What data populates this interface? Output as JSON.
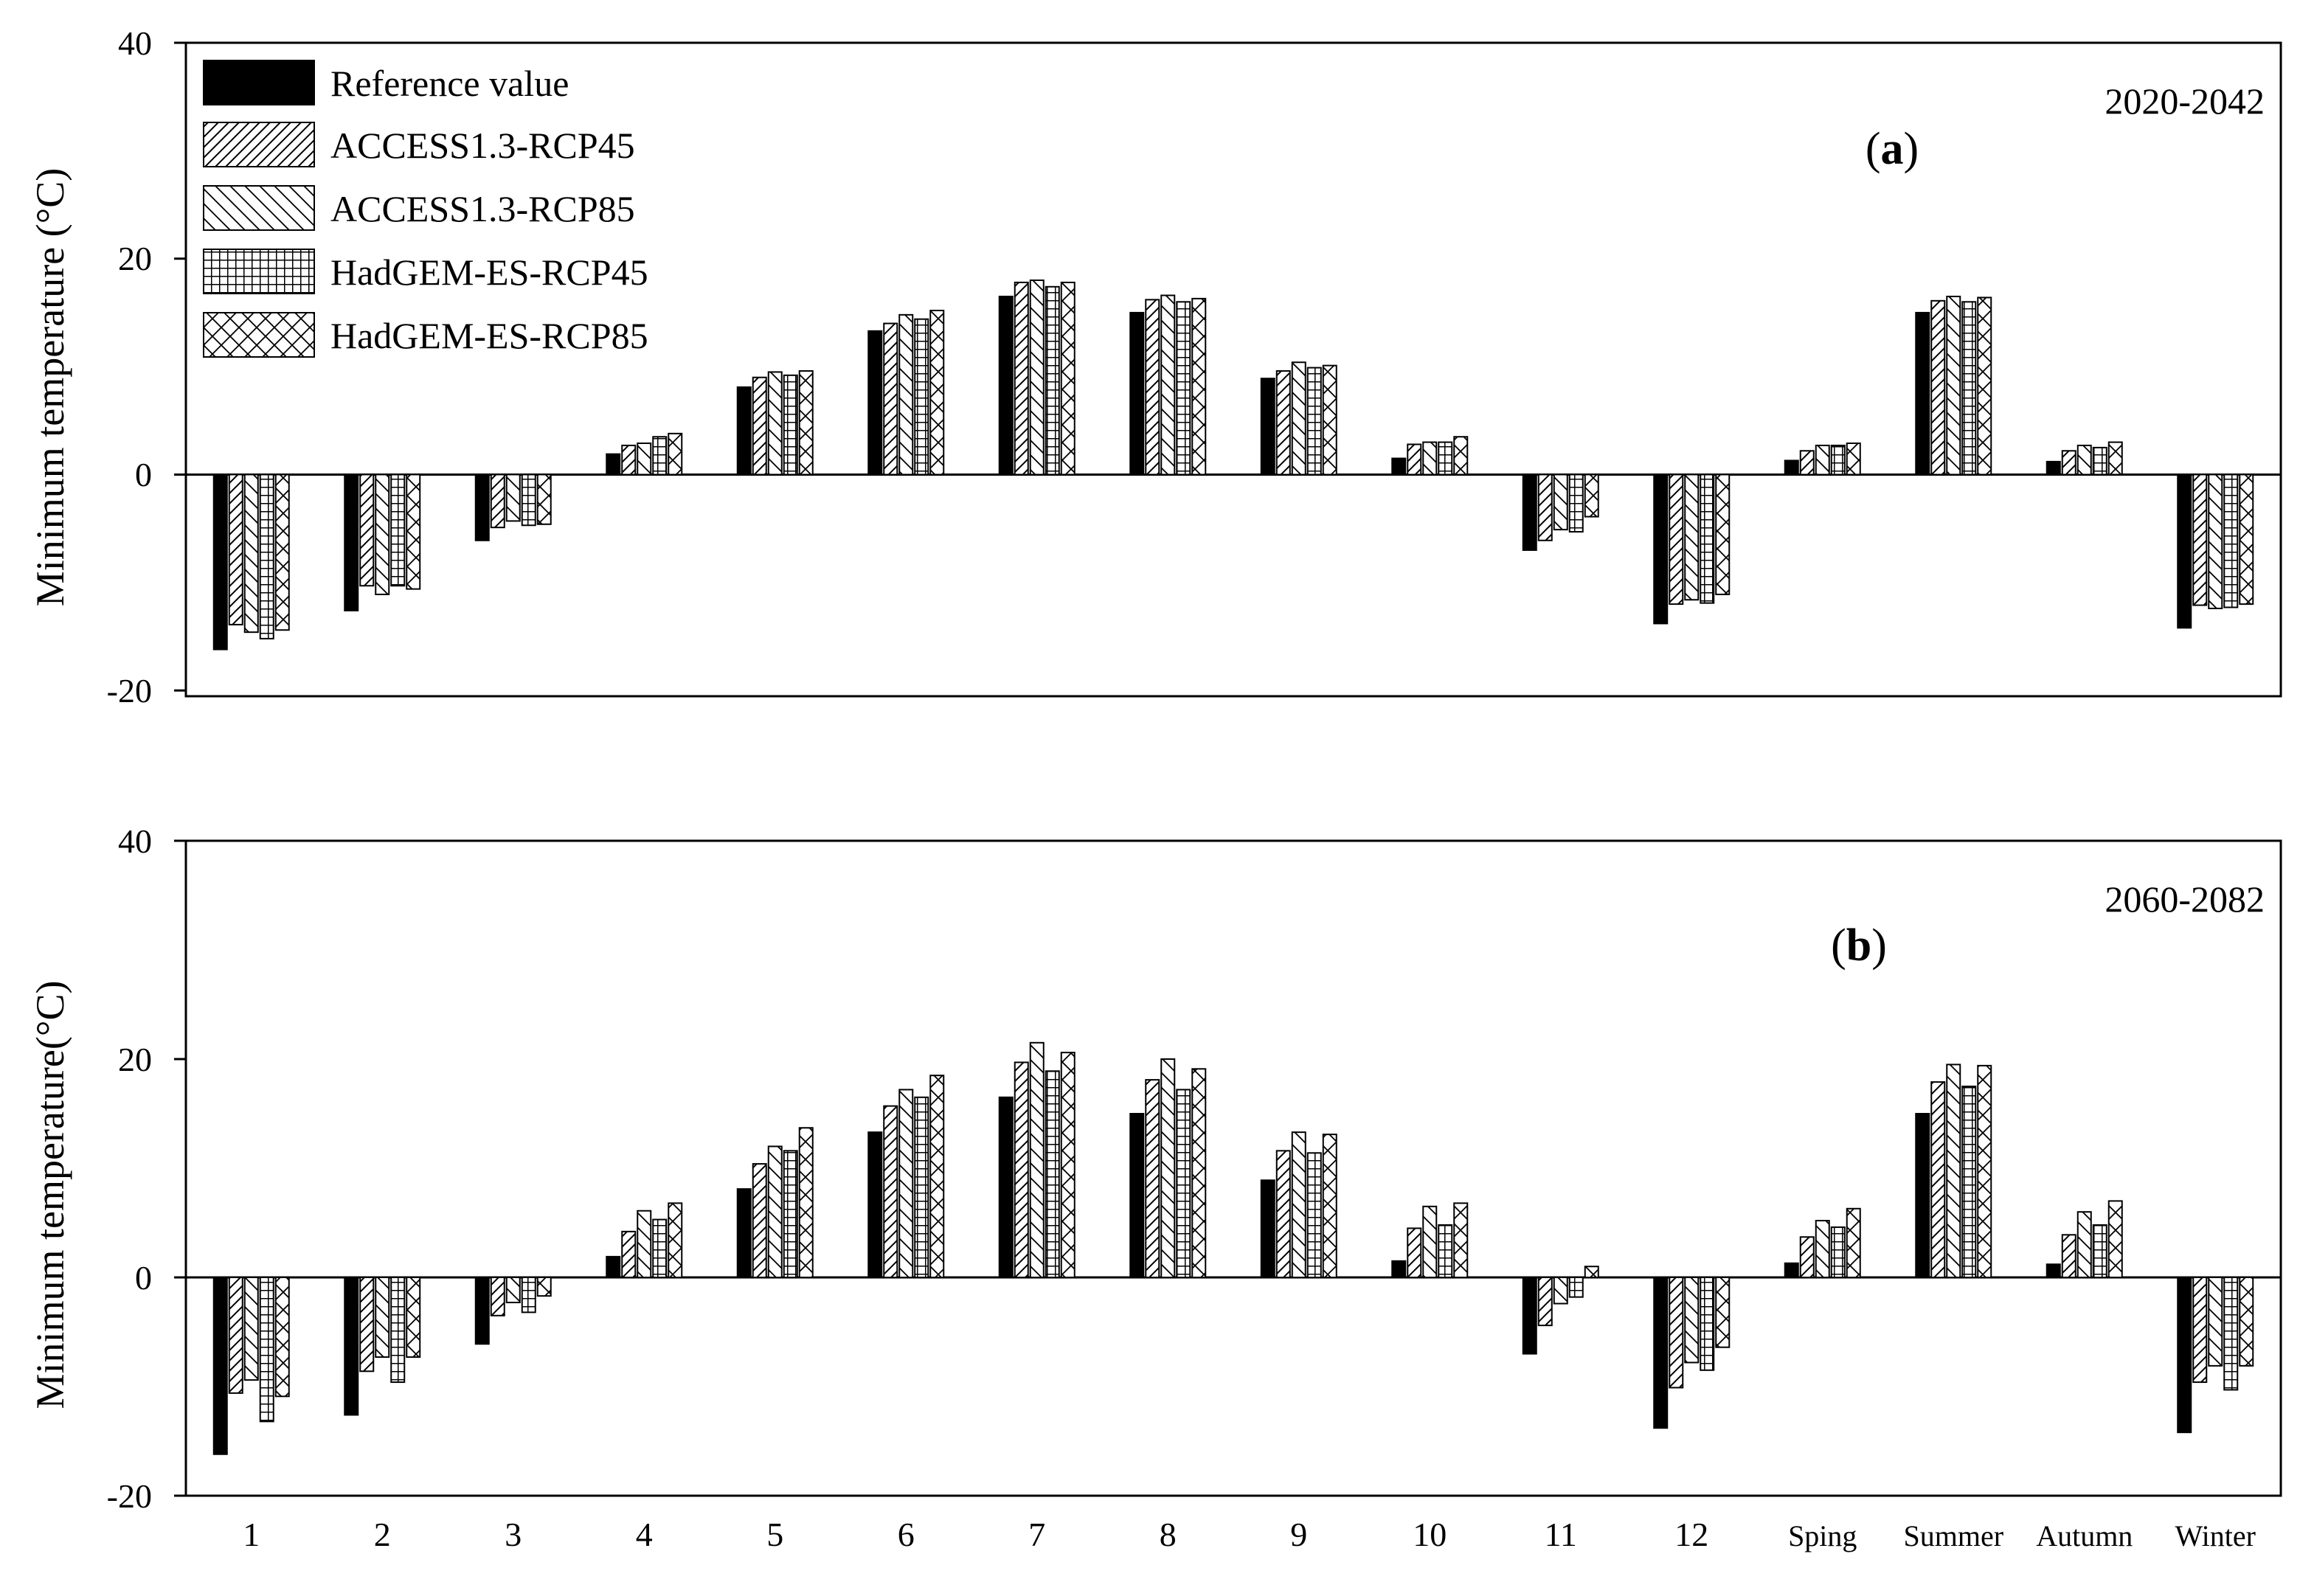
{
  "legend": [
    {
      "key": "ref",
      "label": "Reference value"
    },
    {
      "key": "a45",
      "label": "ACCESS1.3-RCP45"
    },
    {
      "key": "a85",
      "label": "ACCESS1.3-RCP85"
    },
    {
      "key": "h45",
      "label": "HadGEM-ES-RCP45"
    },
    {
      "key": "h85",
      "label": "HadGEM-ES-RCP85"
    }
  ],
  "chart_data": [
    {
      "type": "bar",
      "panel_label_open": "(",
      "panel_label_letter": "a",
      "panel_label_close": ")",
      "period": "2020-2042",
      "ylabel": "Minimum temperature (°C)",
      "ylim": [
        -20,
        40
      ],
      "yticks": [
        -20,
        0,
        20,
        40
      ],
      "categories": [
        "1",
        "2",
        "3",
        "4",
        "5",
        "6",
        "7",
        "8",
        "9",
        "10",
        "11",
        "12",
        "Sping",
        "Summer",
        "Autumn",
        "Winter"
      ],
      "series": [
        {
          "name": "Reference value",
          "values": [
            -16.2,
            -12.6,
            -6.1,
            1.9,
            8.1,
            13.3,
            16.5,
            15.0,
            8.9,
            1.5,
            -7.0,
            -13.8,
            1.3,
            15.0,
            1.2,
            -14.2
          ]
        },
        {
          "name": "ACCESS1.3-RCP45",
          "values": [
            -13.9,
            -10.3,
            -4.9,
            2.7,
            9.0,
            14.0,
            17.8,
            16.2,
            9.6,
            2.8,
            -6.1,
            -12.0,
            2.2,
            16.1,
            2.2,
            -12.1
          ]
        },
        {
          "name": "ACCESS1.3-RCP85",
          "values": [
            -14.6,
            -11.1,
            -4.3,
            2.9,
            9.5,
            14.8,
            18.0,
            16.6,
            10.4,
            3.0,
            -5.1,
            -11.6,
            2.7,
            16.5,
            2.7,
            -12.4
          ]
        },
        {
          "name": "HadGEM-ES-RCP45",
          "values": [
            -15.2,
            -10.3,
            -4.7,
            3.5,
            9.2,
            14.4,
            17.4,
            16.0,
            9.9,
            3.0,
            -5.3,
            -11.9,
            2.7,
            16.0,
            2.5,
            -12.3
          ]
        },
        {
          "name": "HadGEM-ES-RCP85",
          "values": [
            -14.4,
            -10.6,
            -4.6,
            3.8,
            9.6,
            15.2,
            17.8,
            16.3,
            10.1,
            3.5,
            -3.9,
            -11.1,
            2.9,
            16.4,
            3.0,
            -12.0
          ]
        }
      ]
    },
    {
      "type": "bar",
      "panel_label_open": "(",
      "panel_label_letter": "b",
      "panel_label_close": ")",
      "period": "2060-2082",
      "ylabel": "Minimum temperature(°C)",
      "ylim": [
        -20,
        40
      ],
      "yticks": [
        -20,
        0,
        20,
        40
      ],
      "categories": [
        "1",
        "2",
        "3",
        "4",
        "5",
        "6",
        "7",
        "8",
        "9",
        "10",
        "11",
        "12",
        "Sping",
        "Summer",
        "Autumn",
        "Winter"
      ],
      "series": [
        {
          "name": "Reference value",
          "values": [
            -16.2,
            -12.6,
            -6.1,
            1.9,
            8.1,
            13.3,
            16.5,
            15.0,
            8.9,
            1.5,
            -7.0,
            -13.8,
            1.3,
            15.0,
            1.2,
            -14.2
          ]
        },
        {
          "name": "ACCESS1.3-RCP45",
          "values": [
            -10.6,
            -8.6,
            -3.5,
            4.2,
            10.4,
            15.7,
            19.7,
            18.1,
            11.6,
            4.5,
            -4.4,
            -10.1,
            3.7,
            17.9,
            3.9,
            -9.6
          ]
        },
        {
          "name": "ACCESS1.3-RCP85",
          "values": [
            -9.4,
            -7.3,
            -2.3,
            6.1,
            12.0,
            17.2,
            21.5,
            20.0,
            13.3,
            6.5,
            -2.4,
            -7.8,
            5.2,
            19.5,
            6.0,
            -8.1
          ]
        },
        {
          "name": "HadGEM-ES-RCP45",
          "values": [
            -13.2,
            -9.6,
            -3.2,
            5.3,
            11.6,
            16.5,
            18.9,
            17.2,
            11.4,
            4.8,
            -1.8,
            -8.5,
            4.6,
            17.5,
            4.8,
            -10.3
          ]
        },
        {
          "name": "HadGEM-ES-RCP85",
          "values": [
            -10.9,
            -7.3,
            -1.7,
            6.8,
            13.7,
            18.5,
            20.6,
            19.1,
            13.1,
            6.8,
            1.0,
            -6.4,
            6.3,
            19.4,
            7.0,
            -8.1
          ]
        }
      ]
    }
  ]
}
